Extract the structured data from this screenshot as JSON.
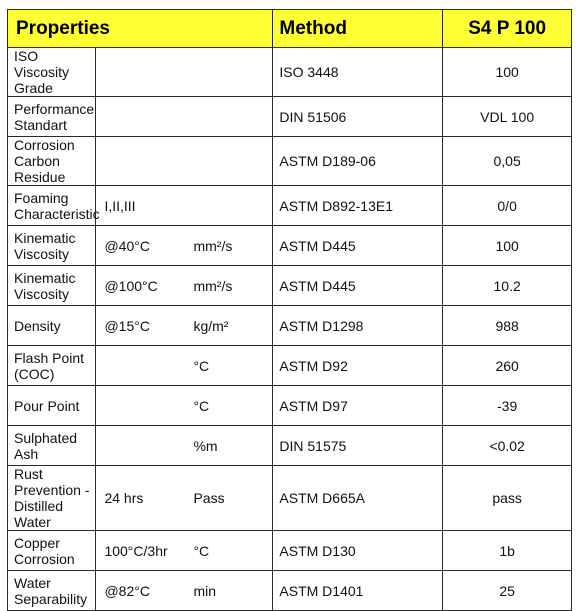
{
  "header": {
    "properties": "Properties",
    "method": "Method",
    "product": "S4 P 100"
  },
  "rows": [
    {
      "property": "ISO Viscosity Grade",
      "condition": "",
      "unit": "",
      "method": "ISO 3448",
      "value": "100"
    },
    {
      "property": "Performance Standart",
      "condition": "",
      "unit": "",
      "method": "DIN 51506",
      "value": "VDL 100"
    },
    {
      "property": "Corrosion Carbon Residue",
      "condition": "",
      "unit": "",
      "method": "ASTM D189-06",
      "value": "0,05"
    },
    {
      "property": "Foaming Characteristic",
      "condition": "I,II,III",
      "unit": "",
      "method": "ASTM D892-13E1",
      "value": "0/0"
    },
    {
      "property": "Kinematic Viscosity",
      "condition": "@40°C",
      "unit": "mm²/s",
      "method": "ASTM D445",
      "value": "100"
    },
    {
      "property": "Kinematic Viscosity",
      "condition": "@100°C",
      "unit": "mm²/s",
      "method": "ASTM D445",
      "value": "10.2"
    },
    {
      "property": "Density",
      "condition": "@15°C",
      "unit": "kg/m²",
      "method": "ASTM D1298",
      "value": "988"
    },
    {
      "property": "Flash Point (COC)",
      "condition": "",
      "unit": "°C",
      "method": "ASTM D92",
      "value": "260"
    },
    {
      "property": "Pour Point",
      "condition": "",
      "unit": "°C",
      "method": "ASTM D97",
      "value": "-39"
    },
    {
      "property": "Sulphated Ash",
      "condition": "",
      "unit": "%m",
      "method": "DIN 51575",
      "value": "<0.02"
    },
    {
      "property": "Rust Prevention - Distilled Water",
      "condition": "24 hrs",
      "unit": "Pass",
      "method": "ASTM D665A",
      "value": "pass"
    },
    {
      "property": "Copper Corrosion",
      "condition": "100°C/3hr",
      "unit": "°C",
      "method": "ASTM D130",
      "value": "1b"
    },
    {
      "property": "Water Separability",
      "condition": "@82°C",
      "unit": "min",
      "method": "ASTM D1401",
      "value": "25"
    }
  ]
}
